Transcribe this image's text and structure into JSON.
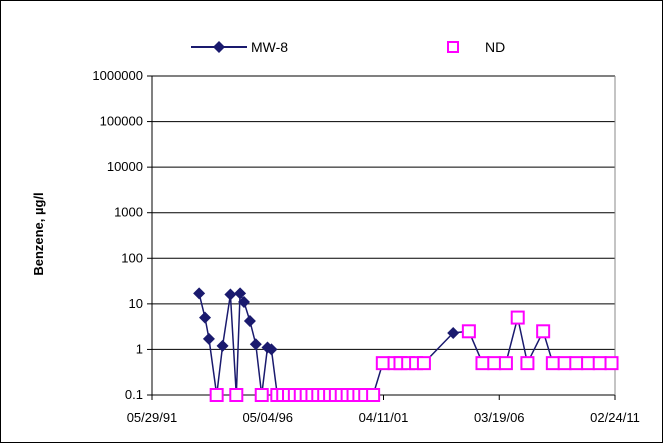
{
  "chart_data": {
    "type": "line",
    "ylabel": "Benzene, µg/l",
    "y_scale": "log",
    "ylim": [
      0.1,
      1000000
    ],
    "y_ticks": [
      "0.1",
      "1",
      "10",
      "100",
      "1000",
      "10000",
      "100000",
      "1000000"
    ],
    "xlim": [
      "1991-05-29",
      "2011-02-24"
    ],
    "x_ticks": [
      "05/29/91",
      "05/04/96",
      "04/11/01",
      "03/19/06",
      "02/24/11"
    ],
    "grid": "horizontal",
    "legend": {
      "placement": "top",
      "entries": [
        "MW-8",
        "ND"
      ]
    },
    "colors": {
      "series": "#1a1a6e",
      "nd": "#ff00ff",
      "grid": "#000000"
    },
    "series": [
      {
        "name": "MW-8",
        "marker": "diamond",
        "x": [
          "1993-06-01",
          "1993-09-01",
          "1993-11-01",
          "1994-03-01",
          "1994-06-01",
          "1994-10-01",
          "1995-01-01",
          "1995-03-01",
          "1995-05-01",
          "1995-08-01",
          "1995-11-01",
          "1996-02-01",
          "1996-05-01",
          "1996-07-01",
          "1996-10-01",
          "1997-01-01",
          "1997-04-01",
          "1997-07-01",
          "1997-10-01",
          "1998-01-01",
          "1998-04-01",
          "1998-07-01",
          "1998-10-01",
          "1999-01-01",
          "1999-04-01",
          "1999-07-01",
          "1999-10-01",
          "2000-01-01",
          "2000-04-01",
          "2000-07-01",
          "2000-11-01",
          "2001-04-01",
          "2001-10-01",
          "2002-01-01",
          "2002-05-01",
          "2002-09-01",
          "2003-01-01",
          "2004-04-01",
          "2004-12-01",
          "2005-07-01",
          "2006-01-01",
          "2006-07-01",
          "2007-01-01",
          "2007-06-01",
          "2008-02-01",
          "2008-07-01",
          "2009-01-01",
          "2009-07-01",
          "2010-01-01",
          "2010-07-01",
          "2011-01-01"
        ],
        "y": [
          17,
          5,
          1.7,
          0.1,
          1.2,
          16,
          0.1,
          17,
          11,
          4.2,
          1.3,
          0.1,
          1.1,
          1.0,
          0.1,
          0.1,
          0.1,
          0.1,
          0.1,
          0.1,
          0.1,
          0.1,
          0.1,
          0.1,
          0.1,
          0.1,
          0.1,
          0.1,
          0.1,
          0.1,
          0.1,
          0.5,
          0.5,
          0.5,
          0.5,
          0.5,
          0.5,
          2.3,
          2.5,
          0.5,
          0.5,
          0.5,
          5,
          0.5,
          2.5,
          0.5,
          0.5,
          0.5,
          0.5,
          0.5,
          0.5
        ],
        "nd": [
          false,
          false,
          false,
          true,
          false,
          false,
          true,
          false,
          false,
          false,
          false,
          true,
          false,
          false,
          true,
          true,
          true,
          true,
          true,
          true,
          true,
          true,
          true,
          true,
          true,
          true,
          true,
          true,
          true,
          true,
          true,
          true,
          true,
          true,
          true,
          true,
          true,
          false,
          true,
          true,
          true,
          true,
          true,
          true,
          true,
          true,
          true,
          true,
          true,
          true,
          true
        ]
      }
    ]
  }
}
